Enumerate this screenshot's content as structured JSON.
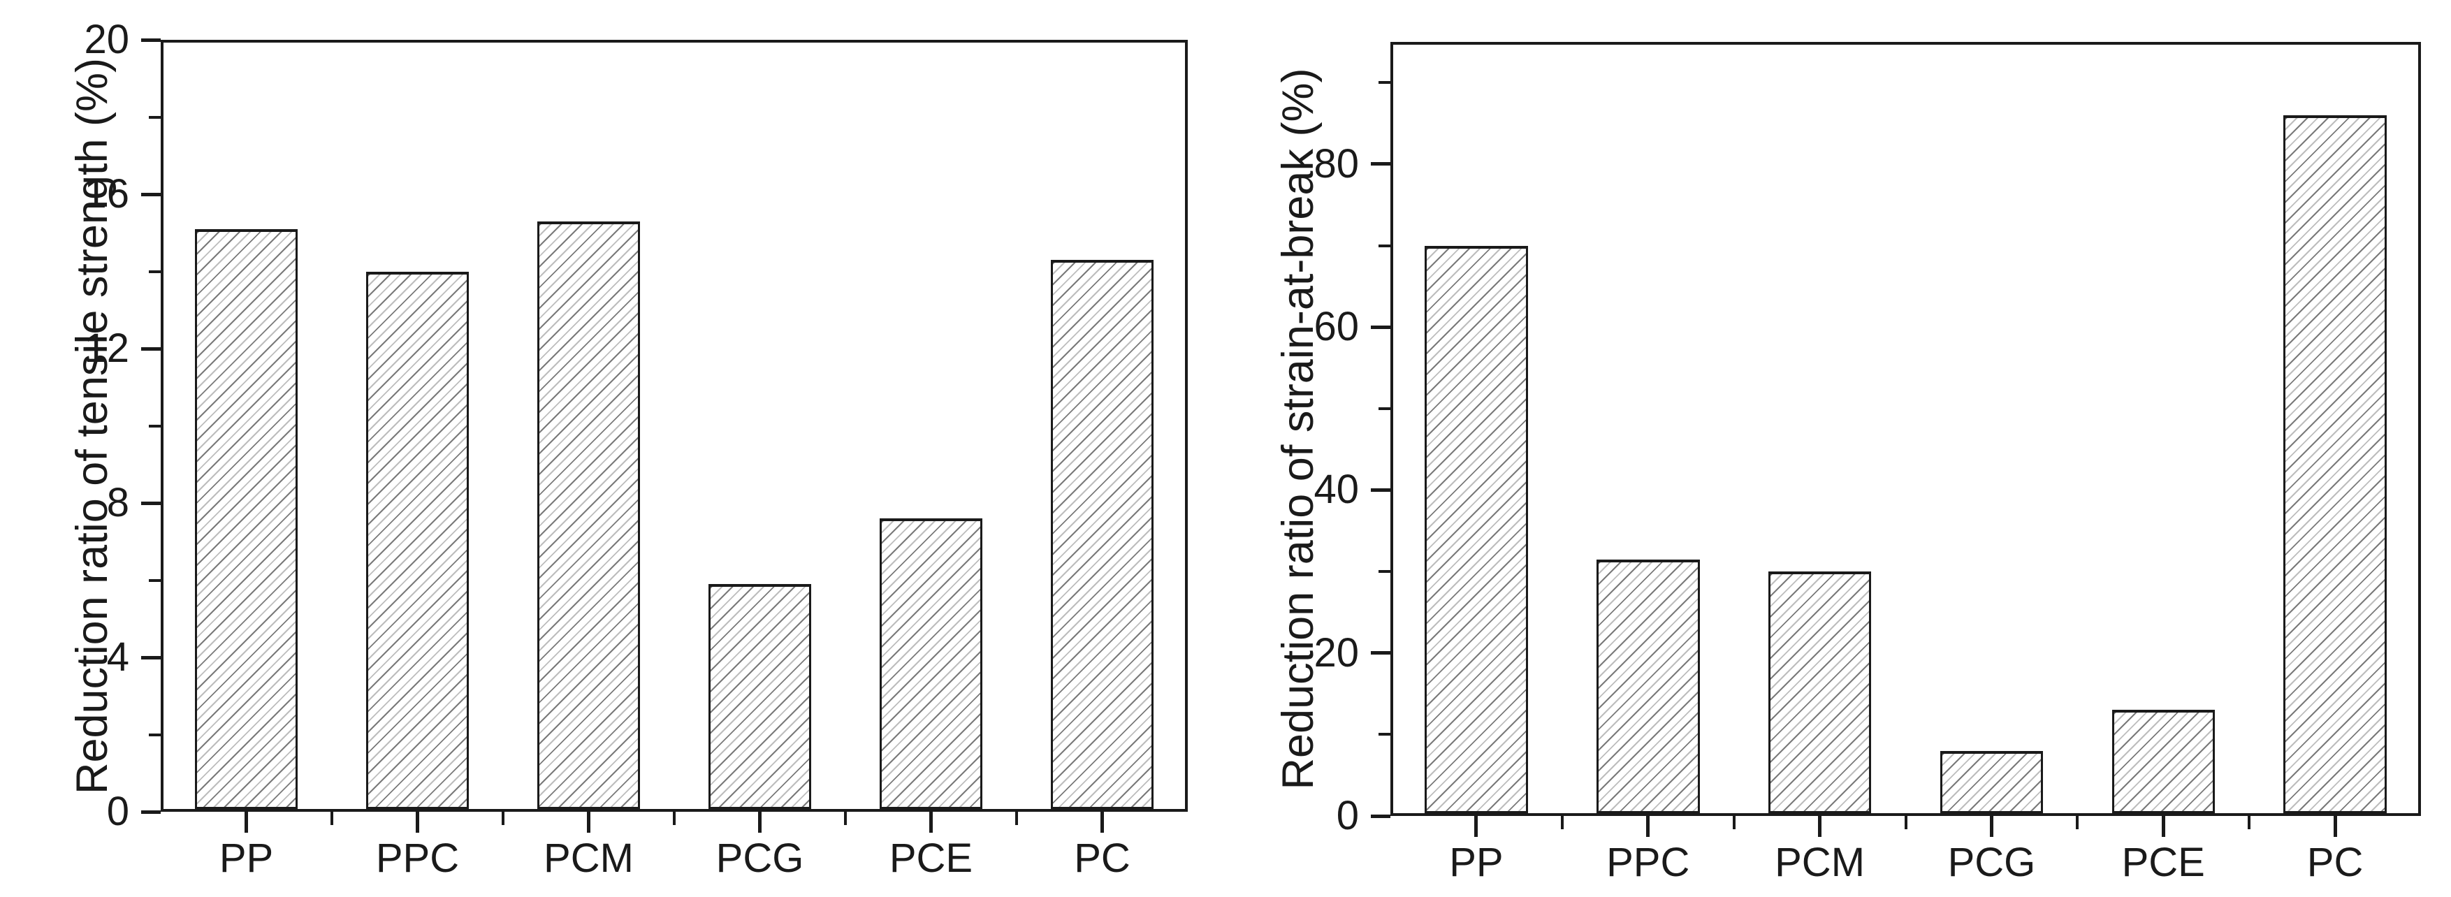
{
  "figure": {
    "background": "#ffffff",
    "axis_color": "#1a1a1a",
    "text_color": "#1a1a1a",
    "bar_fill_color": "#ffffff",
    "hatch_line_color": "#7a7a7a",
    "hatch_light_line_color": "#bdbdbd",
    "hatch_direction": "/"
  },
  "chart_data": [
    {
      "type": "bar",
      "title": "",
      "xlabel": "",
      "ylabel": "Reduction ratio of tensile strength (%)",
      "categories": [
        "PP",
        "PPC",
        "PCM",
        "PCG",
        "PCE",
        "PC"
      ],
      "values": [
        15.1,
        14.0,
        15.3,
        5.9,
        7.6,
        14.3
      ],
      "ylim": [
        0,
        20
      ],
      "yticks": [
        0,
        4,
        8,
        12,
        16,
        20
      ],
      "yticks_minor": [
        2,
        6,
        10,
        14,
        18
      ],
      "grid": false,
      "legend_position": "none",
      "bar_style": "white fill, gray diagonal hatch, black edges"
    },
    {
      "type": "bar",
      "title": "",
      "xlabel": "",
      "ylabel": "Reduction ratio of strain-at-break (%)",
      "categories": [
        "PP",
        "PPC",
        "PCM",
        "PCG",
        "PCE",
        "PC"
      ],
      "values": [
        70,
        31.5,
        30,
        8,
        13,
        86
      ],
      "ylim": [
        0,
        95
      ],
      "yticks": [
        0,
        20,
        40,
        60,
        80
      ],
      "yticks_minor": [
        10,
        30,
        50,
        70,
        90
      ],
      "grid": false,
      "legend_position": "none",
      "bar_style": "white fill, gray diagonal hatch, black edges"
    }
  ]
}
